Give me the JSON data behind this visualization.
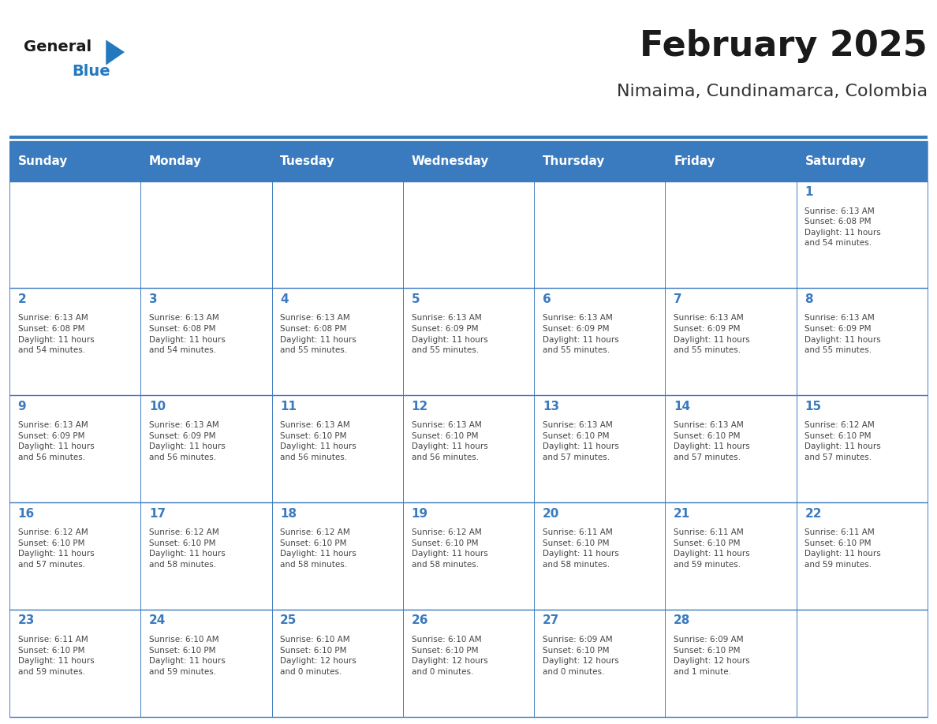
{
  "title": "February 2025",
  "subtitle": "Nimaima, Cundinamarca, Colombia",
  "days_of_week": [
    "Sunday",
    "Monday",
    "Tuesday",
    "Wednesday",
    "Thursday",
    "Friday",
    "Saturday"
  ],
  "header_bg": "#3a7abf",
  "header_text": "#ffffff",
  "cell_bg": "#ffffff",
  "border_color": "#3a7abf",
  "day_num_color": "#3a7abf",
  "cell_text_color": "#444444",
  "title_color": "#1a1a1a",
  "subtitle_color": "#333333",
  "logo_general_color": "#1a1a1a",
  "logo_blue_color": "#2479be",
  "weeks": [
    [
      {
        "day": null,
        "info": null
      },
      {
        "day": null,
        "info": null
      },
      {
        "day": null,
        "info": null
      },
      {
        "day": null,
        "info": null
      },
      {
        "day": null,
        "info": null
      },
      {
        "day": null,
        "info": null
      },
      {
        "day": 1,
        "info": "Sunrise: 6:13 AM\nSunset: 6:08 PM\nDaylight: 11 hours\nand 54 minutes."
      }
    ],
    [
      {
        "day": 2,
        "info": "Sunrise: 6:13 AM\nSunset: 6:08 PM\nDaylight: 11 hours\nand 54 minutes."
      },
      {
        "day": 3,
        "info": "Sunrise: 6:13 AM\nSunset: 6:08 PM\nDaylight: 11 hours\nand 54 minutes."
      },
      {
        "day": 4,
        "info": "Sunrise: 6:13 AM\nSunset: 6:08 PM\nDaylight: 11 hours\nand 55 minutes."
      },
      {
        "day": 5,
        "info": "Sunrise: 6:13 AM\nSunset: 6:09 PM\nDaylight: 11 hours\nand 55 minutes."
      },
      {
        "day": 6,
        "info": "Sunrise: 6:13 AM\nSunset: 6:09 PM\nDaylight: 11 hours\nand 55 minutes."
      },
      {
        "day": 7,
        "info": "Sunrise: 6:13 AM\nSunset: 6:09 PM\nDaylight: 11 hours\nand 55 minutes."
      },
      {
        "day": 8,
        "info": "Sunrise: 6:13 AM\nSunset: 6:09 PM\nDaylight: 11 hours\nand 55 minutes."
      }
    ],
    [
      {
        "day": 9,
        "info": "Sunrise: 6:13 AM\nSunset: 6:09 PM\nDaylight: 11 hours\nand 56 minutes."
      },
      {
        "day": 10,
        "info": "Sunrise: 6:13 AM\nSunset: 6:09 PM\nDaylight: 11 hours\nand 56 minutes."
      },
      {
        "day": 11,
        "info": "Sunrise: 6:13 AM\nSunset: 6:10 PM\nDaylight: 11 hours\nand 56 minutes."
      },
      {
        "day": 12,
        "info": "Sunrise: 6:13 AM\nSunset: 6:10 PM\nDaylight: 11 hours\nand 56 minutes."
      },
      {
        "day": 13,
        "info": "Sunrise: 6:13 AM\nSunset: 6:10 PM\nDaylight: 11 hours\nand 57 minutes."
      },
      {
        "day": 14,
        "info": "Sunrise: 6:13 AM\nSunset: 6:10 PM\nDaylight: 11 hours\nand 57 minutes."
      },
      {
        "day": 15,
        "info": "Sunrise: 6:12 AM\nSunset: 6:10 PM\nDaylight: 11 hours\nand 57 minutes."
      }
    ],
    [
      {
        "day": 16,
        "info": "Sunrise: 6:12 AM\nSunset: 6:10 PM\nDaylight: 11 hours\nand 57 minutes."
      },
      {
        "day": 17,
        "info": "Sunrise: 6:12 AM\nSunset: 6:10 PM\nDaylight: 11 hours\nand 58 minutes."
      },
      {
        "day": 18,
        "info": "Sunrise: 6:12 AM\nSunset: 6:10 PM\nDaylight: 11 hours\nand 58 minutes."
      },
      {
        "day": 19,
        "info": "Sunrise: 6:12 AM\nSunset: 6:10 PM\nDaylight: 11 hours\nand 58 minutes."
      },
      {
        "day": 20,
        "info": "Sunrise: 6:11 AM\nSunset: 6:10 PM\nDaylight: 11 hours\nand 58 minutes."
      },
      {
        "day": 21,
        "info": "Sunrise: 6:11 AM\nSunset: 6:10 PM\nDaylight: 11 hours\nand 59 minutes."
      },
      {
        "day": 22,
        "info": "Sunrise: 6:11 AM\nSunset: 6:10 PM\nDaylight: 11 hours\nand 59 minutes."
      }
    ],
    [
      {
        "day": 23,
        "info": "Sunrise: 6:11 AM\nSunset: 6:10 PM\nDaylight: 11 hours\nand 59 minutes."
      },
      {
        "day": 24,
        "info": "Sunrise: 6:10 AM\nSunset: 6:10 PM\nDaylight: 11 hours\nand 59 minutes."
      },
      {
        "day": 25,
        "info": "Sunrise: 6:10 AM\nSunset: 6:10 PM\nDaylight: 12 hours\nand 0 minutes."
      },
      {
        "day": 26,
        "info": "Sunrise: 6:10 AM\nSunset: 6:10 PM\nDaylight: 12 hours\nand 0 minutes."
      },
      {
        "day": 27,
        "info": "Sunrise: 6:09 AM\nSunset: 6:10 PM\nDaylight: 12 hours\nand 0 minutes."
      },
      {
        "day": 28,
        "info": "Sunrise: 6:09 AM\nSunset: 6:10 PM\nDaylight: 12 hours\nand 1 minute."
      },
      {
        "day": null,
        "info": null
      }
    ]
  ]
}
